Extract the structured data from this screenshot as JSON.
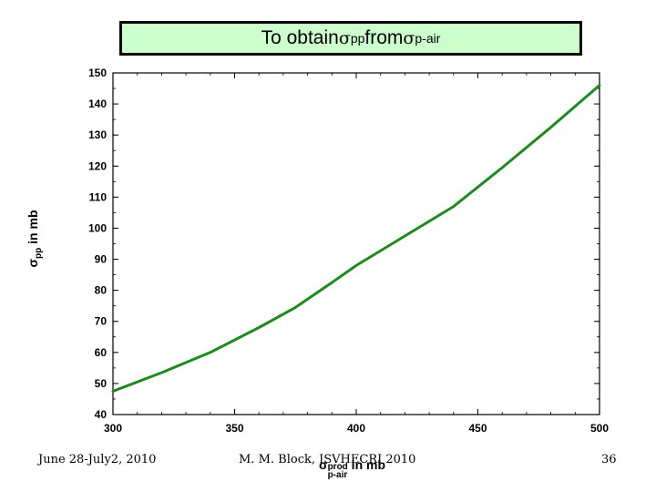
{
  "title": {
    "prefix": "To obtain ",
    "sym1": "σ",
    "sub1": "pp",
    "middle": " from ",
    "sym2": "σ",
    "sub2": "p-air"
  },
  "chart_data": {
    "type": "line",
    "xlabel": {
      "sym": "σ",
      "sup": "prod",
      "sub": "p-air",
      "text": " in mb"
    },
    "ylabel": {
      "sym": "σ",
      "sub": "pp",
      "text": " in mb"
    },
    "xlim": [
      300,
      500
    ],
    "ylim": [
      40,
      150
    ],
    "xticks": [
      "300",
      "350",
      "400",
      "450",
      "500"
    ],
    "yticks": [
      "40",
      "50",
      "60",
      "70",
      "80",
      "90",
      "100",
      "110",
      "120",
      "130",
      "140",
      "150"
    ],
    "series": [
      {
        "color": "#1e8a1e",
        "x": [
          300,
          320,
          340,
          360,
          375,
          390,
          400,
          420,
          440,
          460,
          480,
          500
        ],
        "y": [
          47.5,
          53.5,
          60.0,
          68.0,
          74.5,
          82.5,
          88.0,
          97.5,
          107.0,
          119.5,
          132.5,
          146.0
        ]
      }
    ],
    "grid": false,
    "legend": "none"
  },
  "footer": {
    "date": "June 28-July2, 2010",
    "author": "M. M. Block, ISVHECRI 2010",
    "page": "36"
  }
}
